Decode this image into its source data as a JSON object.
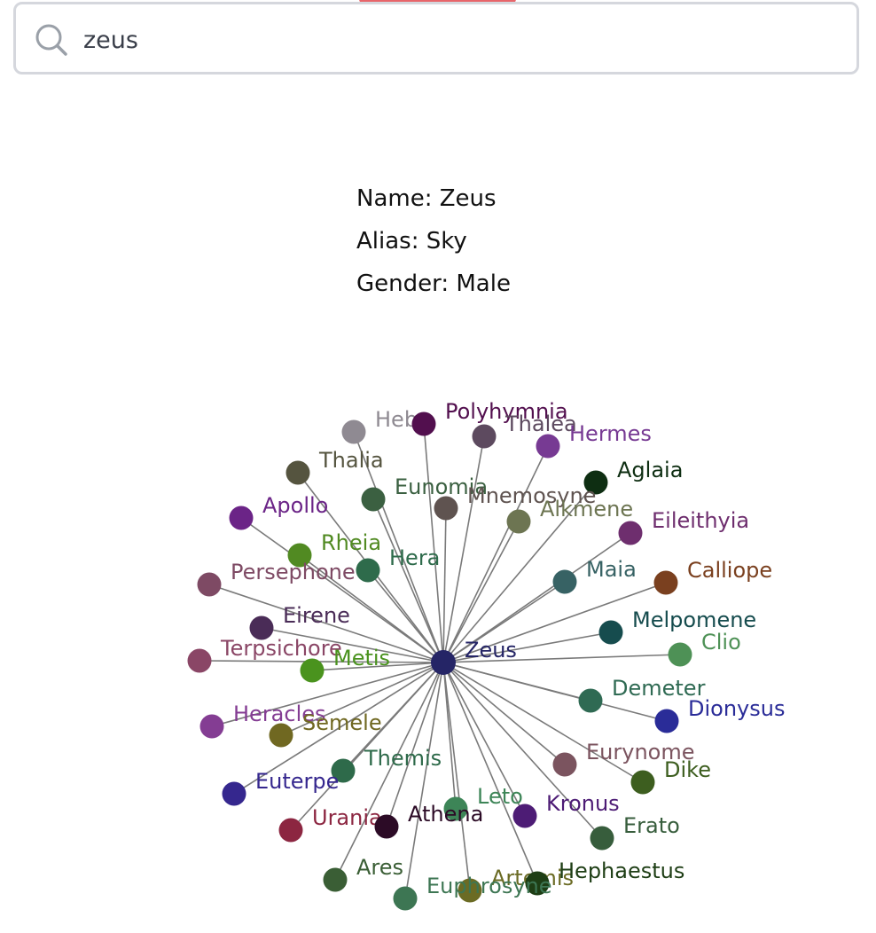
{
  "search": {
    "value": "zeus",
    "icon": "search-icon"
  },
  "details": {
    "name_line": "Name: Zeus",
    "alias_line": "Alias: Sky",
    "gender_line": "Gender: Male"
  },
  "graph": {
    "center": {
      "name": "Zeus",
      "color": "#252566"
    },
    "nodes": [
      {
        "name": "Hebe",
        "color": "#8f8a92"
      },
      {
        "name": "Polyhymnia",
        "color": "#520f4e"
      },
      {
        "name": "Thalea",
        "color": "#5d4a5f"
      },
      {
        "name": "Hermes",
        "color": "#773a93"
      },
      {
        "name": "Thalia",
        "color": "#55543f"
      },
      {
        "name": "Aglaia",
        "color": "#0e2e12"
      },
      {
        "name": "Eunomia",
        "color": "#3b6041"
      },
      {
        "name": "Mnemosyne",
        "color": "#5f5350"
      },
      {
        "name": "Alkmene",
        "color": "#6d7552"
      },
      {
        "name": "Apollo",
        "color": "#6b2487"
      },
      {
        "name": "Eileithyia",
        "color": "#6e2e6e"
      },
      {
        "name": "Rheia",
        "color": "#518a22"
      },
      {
        "name": "Hera",
        "color": "#2e6b4b"
      },
      {
        "name": "Persephone",
        "color": "#7e4a64"
      },
      {
        "name": "Maia",
        "color": "#376264"
      },
      {
        "name": "Calliope",
        "color": "#7a401f"
      },
      {
        "name": "Eirene",
        "color": "#4a2c57"
      },
      {
        "name": "Melpomene",
        "color": "#164c4e"
      },
      {
        "name": "Terpsichore",
        "color": "#8a4666"
      },
      {
        "name": "Metis",
        "color": "#4a931e"
      },
      {
        "name": "Clio",
        "color": "#4e9156"
      },
      {
        "name": "Demeter",
        "color": "#2f6a53"
      },
      {
        "name": "Heracles",
        "color": "#843d93"
      },
      {
        "name": "Semele",
        "color": "#706821"
      },
      {
        "name": "Dionysus",
        "color": "#2a2c98"
      },
      {
        "name": "Themis",
        "color": "#2e6a4a"
      },
      {
        "name": "Eurynome",
        "color": "#7b545f"
      },
      {
        "name": "Dike",
        "color": "#3d5e1f"
      },
      {
        "name": "Euterpe",
        "color": "#35278e"
      },
      {
        "name": "Leto",
        "color": "#3d8557"
      },
      {
        "name": "Kronus",
        "color": "#4d1c75"
      },
      {
        "name": "Urania",
        "color": "#8c2641"
      },
      {
        "name": "Athena",
        "color": "#2c0b26"
      },
      {
        "name": "Erato",
        "color": "#375d3c"
      },
      {
        "name": "Ares",
        "color": "#3a5e35"
      },
      {
        "name": "Artemis",
        "color": "#6b6b24"
      },
      {
        "name": "Hephaestus",
        "color": "#1e3e15"
      },
      {
        "name": "Euphrosyne",
        "color": "#3d7653"
      }
    ]
  }
}
